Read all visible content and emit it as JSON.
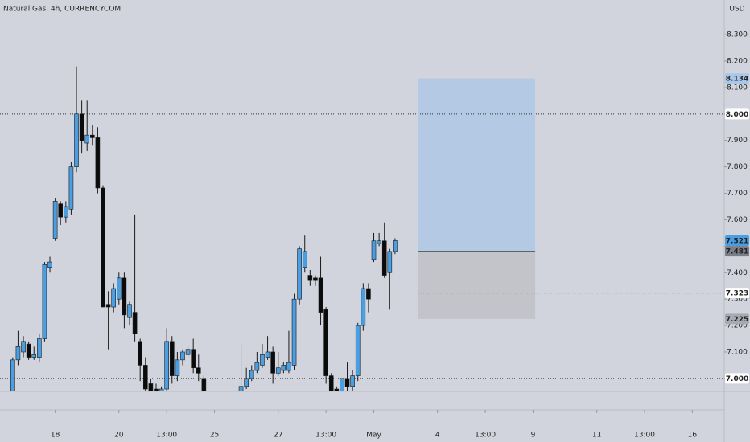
{
  "chart_data": {
    "type": "candlestick",
    "title": "Natural Gas, 4h, CURRENCYCOM",
    "currency": "USD",
    "up_color": "#4a9fe3",
    "down_color": "#0b0b0b",
    "xlim": [
      -0.4,
      136
    ],
    "ylim": [
      6.951,
      8.431
    ],
    "xticks": [
      {
        "value": 10,
        "label": "18"
      },
      {
        "value": 22,
        "label": "20"
      },
      {
        "value": 31,
        "label": "13:00"
      },
      {
        "value": 40,
        "label": "25"
      },
      {
        "value": 52,
        "label": "27"
      },
      {
        "value": 61,
        "label": "13:00"
      },
      {
        "value": 70,
        "label": "May"
      },
      {
        "value": 82,
        "label": "4"
      },
      {
        "value": 91,
        "label": "13:00"
      },
      {
        "value": 100,
        "label": "9"
      },
      {
        "value": 112,
        "label": "11"
      },
      {
        "value": 121,
        "label": "13:00"
      },
      {
        "value": 130,
        "label": "16"
      }
    ],
    "yticks": [
      {
        "value": 7.0,
        "label": "7.000"
      },
      {
        "value": 7.1,
        "label": "7.100"
      },
      {
        "value": 7.2,
        "label": "7.200"
      },
      {
        "value": 7.3,
        "label": "7.300"
      },
      {
        "value": 7.4,
        "label": "7.400"
      },
      {
        "value": 7.5,
        "label": "7.500"
      },
      {
        "value": 7.6,
        "label": "7.600"
      },
      {
        "value": 7.7,
        "label": "7.700"
      },
      {
        "value": 7.8,
        "label": "7.800"
      },
      {
        "value": 7.9,
        "label": "7.900"
      },
      {
        "value": 8.0,
        "label": "8.000"
      },
      {
        "value": 8.1,
        "label": "8.100"
      },
      {
        "value": 8.2,
        "label": "8.200"
      },
      {
        "value": 8.3,
        "label": "8.300"
      }
    ],
    "x": [
      2,
      3,
      4,
      5,
      6,
      7,
      8,
      9,
      10,
      11,
      12,
      13,
      14,
      15,
      16,
      17,
      18,
      19,
      20,
      21,
      22,
      23,
      24,
      25,
      26,
      27,
      28,
      29,
      30,
      31,
      32,
      33,
      34,
      35,
      36,
      37,
      38,
      45,
      46,
      47,
      48,
      49,
      50,
      51,
      52,
      53,
      54,
      55,
      56,
      57,
      58,
      59,
      60,
      61,
      62,
      63,
      64,
      65,
      66,
      67,
      68,
      69,
      70,
      71,
      72,
      73,
      74
    ],
    "open": [
      6.95,
      7.07,
      7.1,
      7.13,
      7.08,
      7.08,
      7.15,
      7.42,
      7.53,
      7.66,
      7.61,
      7.64,
      7.8,
      8.0,
      7.89,
      7.92,
      7.91,
      7.72,
      7.28,
      7.27,
      7.3,
      7.38,
      7.23,
      7.25,
      7.14,
      7.05,
      6.98,
      6.96,
      6.94,
      6.96,
      7.14,
      7.01,
      7.07,
      7.09,
      7.11,
      7.04,
      7.0,
      6.94,
      6.97,
      7.0,
      7.03,
      7.05,
      7.08,
      7.1,
      7.02,
      7.03,
      7.03,
      7.05,
      7.3,
      7.42,
      7.39,
      7.38,
      7.38,
      7.26,
      7.01,
      6.96,
      6.95,
      7.0,
      6.97,
      7.01,
      7.2,
      7.34,
      7.45,
      7.51,
      7.52,
      7.4,
      7.48
    ],
    "high": [
      7.08,
      7.18,
      7.16,
      7.14,
      7.12,
      7.17,
      7.44,
      7.46,
      7.68,
      7.67,
      7.67,
      7.82,
      8.18,
      8.05,
      8.05,
      7.96,
      7.95,
      7.73,
      7.33,
      7.36,
      7.4,
      7.4,
      7.29,
      7.62,
      7.15,
      7.08,
      7.0,
      6.98,
      6.97,
      7.19,
      7.16,
      7.1,
      7.11,
      7.12,
      7.15,
      7.09,
      7.01,
      7.13,
      7.04,
      7.05,
      7.1,
      7.13,
      7.16,
      7.12,
      7.1,
      7.06,
      7.18,
      7.32,
      7.5,
      7.54,
      7.41,
      7.39,
      7.46,
      7.27,
      7.02,
      6.97,
      7.0,
      7.06,
      7.03,
      7.21,
      7.36,
      7.36,
      7.55,
      7.55,
      7.59,
      7.49,
      7.53
    ],
    "low": [
      6.93,
      7.05,
      7.08,
      7.07,
      7.07,
      7.06,
      7.14,
      7.4,
      7.52,
      7.58,
      7.59,
      7.62,
      7.78,
      7.85,
      7.86,
      7.88,
      7.7,
      7.27,
      7.11,
      7.25,
      7.28,
      7.19,
      7.2,
      7.14,
      6.99,
      6.94,
      6.93,
      6.93,
      6.93,
      6.94,
      6.98,
      6.99,
      7.05,
      7.08,
      7.02,
      6.99,
      6.93,
      6.93,
      6.96,
      6.99,
      7.02,
      7.04,
      7.07,
      6.98,
      7.01,
      7.02,
      7.02,
      7.03,
      7.28,
      7.4,
      7.35,
      7.35,
      7.2,
      6.98,
      6.94,
      6.94,
      6.94,
      6.95,
      6.95,
      6.99,
      7.18,
      7.25,
      7.44,
      7.5,
      7.38,
      7.26,
      7.47
    ],
    "close": [
      7.07,
      7.12,
      7.14,
      7.08,
      7.09,
      7.15,
      7.43,
      7.44,
      7.67,
      7.61,
      7.65,
      7.8,
      8.0,
      7.9,
      7.92,
      7.91,
      7.72,
      7.27,
      7.27,
      7.34,
      7.38,
      7.24,
      7.28,
      7.17,
      7.05,
      6.96,
      6.95,
      6.94,
      6.96,
      7.14,
      7.01,
      7.07,
      7.1,
      7.11,
      7.04,
      7.02,
      6.94,
      6.97,
      7.0,
      7.03,
      7.06,
      7.09,
      7.1,
      7.02,
      7.04,
      7.05,
      7.06,
      7.3,
      7.49,
      7.48,
      7.37,
      7.37,
      7.25,
      7.01,
      6.95,
      6.95,
      7.0,
      6.97,
      7.01,
      7.2,
      7.34,
      7.3,
      7.52,
      7.52,
      7.39,
      7.48,
      7.521
    ],
    "position": {
      "x": [
        78.4,
        100.4
      ],
      "target": 8.134,
      "entry": 7.481,
      "stop": 7.225,
      "profit_color": "#b3c9e4",
      "loss_color": "#c2c4ca"
    },
    "price_labels": [
      {
        "value": 8.134,
        "label": "8.134",
        "color": "#a9c7e9",
        "text_color": "#1c2a3a",
        "line": "none"
      },
      {
        "value": 8.0,
        "label": "8.000",
        "color": "#ffffff",
        "text_color": "#000000",
        "line": "full"
      },
      {
        "value": 7.521,
        "label": "7.521",
        "color": "#4a9fe3",
        "text_color": "#ffffff",
        "line": "none"
      },
      {
        "value": 7.481,
        "label": "7.481",
        "color": "#7b7e87",
        "text_color": "#ffffff",
        "line": "none"
      },
      {
        "value": 7.323,
        "label": "7.323",
        "color": "#ffffff",
        "text_color": "#000000",
        "line": "partial"
      },
      {
        "value": 7.225,
        "label": "7.225",
        "color": "#a7aab2",
        "text_color": "#1a1a1a",
        "line": "none"
      },
      {
        "value": 7.0,
        "label": "7.000",
        "color": "#ffffff",
        "text_color": "#000000",
        "line": "full"
      }
    ]
  }
}
